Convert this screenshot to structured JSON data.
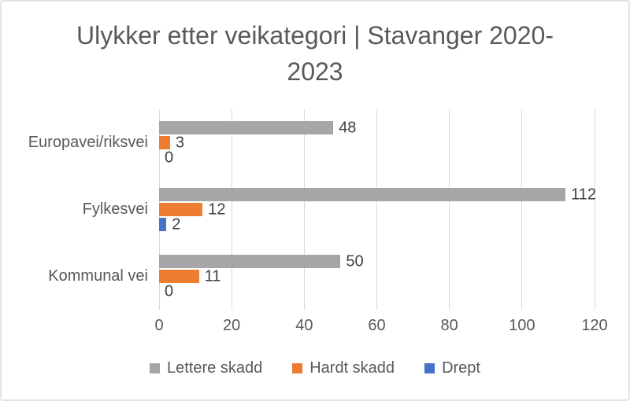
{
  "title": "Ulykker etter veikategori | Stavanger 2020-2023",
  "chart_data": {
    "type": "bar",
    "orientation": "horizontal",
    "title": "Ulykker etter veikategori | Stavanger 2020-2023",
    "categories": [
      "Europavei/riksvei",
      "Fylkesvei",
      "Kommunal vei"
    ],
    "series": [
      {
        "name": "Lettere skadd",
        "color": "#A6A6A6",
        "values": [
          48,
          112,
          50
        ]
      },
      {
        "name": "Hardt skadd",
        "color": "#ED7D31",
        "values": [
          3,
          12,
          11
        ]
      },
      {
        "name": "Drept",
        "color": "#4472C4",
        "values": [
          0,
          2,
          0
        ]
      }
    ],
    "xlabel": "",
    "ylabel": "",
    "xlim": [
      0,
      120
    ],
    "xticks": [
      0,
      20,
      40,
      60,
      80,
      100,
      120
    ],
    "grid": true,
    "legend_position": "bottom",
    "colors": {
      "axis_text": "#595959",
      "data_label_text": "#404040",
      "gridline": "#D9D9D9",
      "background": "#FFFFFF",
      "border": "#E4E4E4"
    }
  }
}
